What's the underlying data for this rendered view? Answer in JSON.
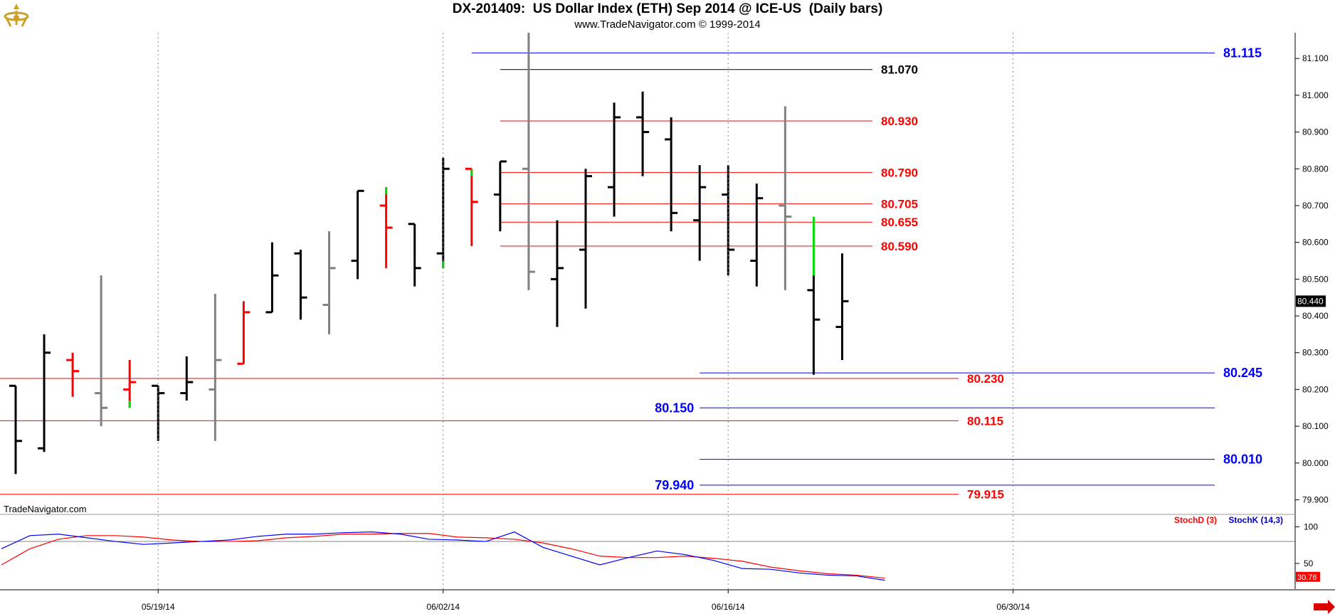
{
  "header": {
    "title": "DX-201409:  US Dollar Index (ETH) Sep 2014 @ ICE-US  (Daily bars)",
    "subtitle": "www.TradeNavigator.com © 1999-2014",
    "watermark": "TradeNavigator.com",
    "logo_icon": "trade-navigator-logo-icon"
  },
  "colors": {
    "up_bar": "#000000",
    "down_bar": "#ff0000",
    "neutral_bar": "#808080",
    "wick_highlight": "#00dd00",
    "support_line": "#0000ff",
    "resistance_line": "#ff0000",
    "high_line": "#000000",
    "stochD": "#ff0000",
    "stochK": "#0000ff",
    "grid": "#888888"
  },
  "chart_data": [
    {
      "type": "ohlc",
      "y_axis": {
        "range": [
          79.87,
          81.17
        ],
        "ticks": [
          "79.900",
          "80.000",
          "80.100",
          "80.200",
          "80.300",
          "80.400",
          "80.500",
          "80.600",
          "80.700",
          "80.800",
          "80.900",
          "81.000",
          "81.100"
        ],
        "last_price": "80.440"
      },
      "x_axis": {
        "ticks": [
          {
            "label": "05/19/14",
            "bar": 5
          },
          {
            "label": "06/02/14",
            "bar": 15
          },
          {
            "label": "06/16/14",
            "bar": 25
          },
          {
            "label": "06/30/14",
            "bar": 35
          }
        ]
      },
      "bars": [
        {
          "o": 80.21,
          "h": 80.21,
          "l": 79.97,
          "c": 80.06,
          "col": "up"
        },
        {
          "o": 80.04,
          "h": 80.35,
          "l": 80.03,
          "c": 80.3,
          "col": "up"
        },
        {
          "o": 80.28,
          "h": 80.3,
          "l": 80.18,
          "c": 80.25,
          "col": "down"
        },
        {
          "o": 80.19,
          "h": 80.51,
          "l": 80.1,
          "c": 80.15,
          "col": "neutral"
        },
        {
          "o": 80.2,
          "h": 80.28,
          "l": 80.15,
          "c": 80.22,
          "col": "down",
          "hl_low": true
        },
        {
          "o": 80.21,
          "h": 80.21,
          "l": 80.06,
          "c": 80.19,
          "col": "up"
        },
        {
          "o": 80.19,
          "h": 80.29,
          "l": 80.17,
          "c": 80.22,
          "col": "up"
        },
        {
          "o": 80.2,
          "h": 80.46,
          "l": 80.06,
          "c": 80.28,
          "col": "neutral"
        },
        {
          "o": 80.27,
          "h": 80.44,
          "l": 80.27,
          "c": 80.41,
          "col": "down"
        },
        {
          "o": 80.41,
          "h": 80.6,
          "l": 80.41,
          "c": 80.51,
          "col": "up"
        },
        {
          "o": 80.57,
          "h": 80.58,
          "l": 80.39,
          "c": 80.45,
          "col": "up"
        },
        {
          "o": 80.43,
          "h": 80.63,
          "l": 80.35,
          "c": 80.53,
          "col": "neutral"
        },
        {
          "o": 80.55,
          "h": 80.74,
          "l": 80.5,
          "c": 80.74,
          "col": "up"
        },
        {
          "o": 80.7,
          "h": 80.75,
          "l": 80.53,
          "c": 80.64,
          "col": "down",
          "hl_high": true
        },
        {
          "o": 80.65,
          "h": 80.65,
          "l": 80.48,
          "c": 80.53,
          "col": "up"
        },
        {
          "o": 80.57,
          "h": 80.83,
          "l": 80.53,
          "c": 80.8,
          "col": "up",
          "hl_low": true
        },
        {
          "o": 80.8,
          "h": 80.8,
          "l": 80.59,
          "c": 80.71,
          "col": "down",
          "hl_high": true
        },
        {
          "o": 80.73,
          "h": 80.82,
          "l": 80.63,
          "c": 80.82,
          "col": "up"
        },
        {
          "o": 80.8,
          "h": 81.17,
          "l": 80.47,
          "c": 80.52,
          "col": "neutral"
        },
        {
          "o": 80.5,
          "h": 80.66,
          "l": 80.37,
          "c": 80.53,
          "col": "up"
        },
        {
          "o": 80.58,
          "h": 80.8,
          "l": 80.42,
          "c": 80.78,
          "col": "up"
        },
        {
          "o": 80.75,
          "h": 80.98,
          "l": 80.67,
          "c": 80.94,
          "col": "up"
        },
        {
          "o": 80.94,
          "h": 81.01,
          "l": 80.78,
          "c": 80.9,
          "col": "up"
        },
        {
          "o": 80.88,
          "h": 80.94,
          "l": 80.63,
          "c": 80.68,
          "col": "up"
        },
        {
          "o": 80.66,
          "h": 80.81,
          "l": 80.55,
          "c": 80.75,
          "col": "up"
        },
        {
          "o": 80.73,
          "h": 80.81,
          "l": 80.51,
          "c": 80.58,
          "col": "up"
        },
        {
          "o": 80.55,
          "h": 80.76,
          "l": 80.48,
          "c": 80.72,
          "col": "up"
        },
        {
          "o": 80.7,
          "h": 80.97,
          "l": 80.47,
          "c": 80.67,
          "col": "neutral"
        },
        {
          "o": 80.47,
          "h": 80.67,
          "l": 80.24,
          "c": 80.39,
          "col": "up",
          "hl_high_to": 80.51
        },
        {
          "o": 80.37,
          "h": 80.57,
          "l": 80.28,
          "c": 80.44,
          "col": "up"
        }
      ],
      "levels": [
        {
          "value": 81.115,
          "label": "81.115",
          "color": "blue",
          "from_bar": 17,
          "to": "far",
          "label_pos": "right"
        },
        {
          "value": 81.07,
          "label": "81.070",
          "color": "black",
          "from_bar": 18,
          "to": "mid",
          "label_pos": "end"
        },
        {
          "value": 80.93,
          "label": "80.930",
          "color": "red",
          "from_bar": 18,
          "to": "mid",
          "label_pos": "end"
        },
        {
          "value": 80.79,
          "label": "80.790",
          "color": "red",
          "from_bar": 18,
          "to": "mid",
          "label_pos": "end"
        },
        {
          "value": 80.705,
          "label": "80.705",
          "color": "red",
          "from_bar": 18,
          "to": "mid",
          "label_pos": "end"
        },
        {
          "value": 80.655,
          "label": "80.655",
          "color": "red",
          "from_bar": 18,
          "to": "mid",
          "label_pos": "end"
        },
        {
          "value": 80.59,
          "label": "80.590",
          "color": "red",
          "from_bar": 18,
          "to": "mid",
          "label_pos": "end"
        },
        {
          "value": 80.245,
          "label": "80.245",
          "color": "blue",
          "from_bar": 25,
          "to": "far",
          "label_pos": "right"
        },
        {
          "value": 80.23,
          "label": "80.230",
          "color": "red",
          "from_bar": -1,
          "to": "long",
          "label_pos": "end"
        },
        {
          "value": 80.15,
          "label": "80.150",
          "color": "blue",
          "from_bar": 25,
          "to": "far",
          "label_pos": "left"
        },
        {
          "value": 80.115,
          "label": "80.115",
          "color": "red",
          "from_bar": -1,
          "to": "long",
          "label_pos": "end"
        },
        {
          "value": 80.01,
          "label": "80.010",
          "color": "blue",
          "from_bar": 25,
          "to": "far",
          "label_pos": "right"
        },
        {
          "value": 79.94,
          "label": "79.940",
          "color": "blue",
          "from_bar": 25,
          "to": "far",
          "label_pos": "left"
        },
        {
          "value": 79.915,
          "label": "79.915",
          "color": "red",
          "from_bar": -1,
          "to": "long",
          "label_pos": "end"
        }
      ]
    },
    {
      "type": "line",
      "name": "Stochastic",
      "y_axis": {
        "range": [
          15,
          115
        ],
        "ticks": [
          "50",
          "100"
        ],
        "last_value": "30.76",
        "level_line": 80
      },
      "series": [
        {
          "name": "StochD (3)",
          "color": "red",
          "values": [
            48,
            70,
            83,
            88,
            88,
            86,
            82,
            80,
            80,
            81,
            85,
            87,
            90,
            90,
            91,
            91,
            86,
            85,
            83,
            78,
            70,
            60,
            58,
            58,
            60,
            57,
            53,
            45,
            40,
            36,
            34,
            30
          ]
        },
        {
          "name": "StochK (14,3)",
          "color": "blue",
          "values": [
            70,
            88,
            90,
            85,
            80,
            76,
            78,
            80,
            82,
            87,
            90,
            90,
            92,
            93,
            90,
            83,
            82,
            80,
            93,
            72,
            60,
            48,
            58,
            67,
            62,
            54,
            43,
            42,
            37,
            34,
            33,
            27
          ]
        }
      ]
    }
  ]
}
